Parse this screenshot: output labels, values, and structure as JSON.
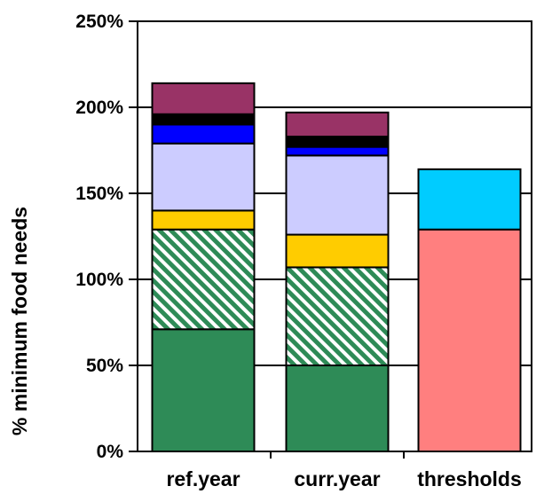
{
  "chart_data": {
    "type": "bar",
    "stacked": true,
    "title": "",
    "xlabel": "",
    "ylabel": "% minimum food needs",
    "ylim": [
      0,
      250
    ],
    "y_ticks": [
      "0%",
      "50%",
      "100%",
      "150%",
      "200%",
      "250%"
    ],
    "y_tick_values": [
      0,
      50,
      100,
      150,
      200,
      250
    ],
    "grid": true,
    "legend": "none",
    "categories": [
      "ref.year",
      "curr.year",
      "thresholds"
    ],
    "series": [
      {
        "color": "#2e8b57",
        "pattern": "solid",
        "values": [
          71,
          50,
          0
        ]
      },
      {
        "color": "#2e8b57",
        "pattern": "diagonal-hatch",
        "values": [
          58,
          57,
          0
        ]
      },
      {
        "color": "#ffcc00",
        "pattern": "solid",
        "values": [
          11,
          19,
          0
        ]
      },
      {
        "color": "#ccccff",
        "pattern": "solid",
        "values": [
          39,
          46,
          0
        ]
      },
      {
        "color": "#0000ff",
        "pattern": "solid",
        "values": [
          11,
          5,
          0
        ]
      },
      {
        "color": "#000000",
        "pattern": "solid",
        "values": [
          6,
          6,
          0
        ]
      },
      {
        "color": "#993366",
        "pattern": "solid",
        "values": [
          18,
          14,
          0
        ]
      },
      {
        "color": "#ff7f7f",
        "pattern": "solid",
        "values": [
          0,
          0,
          129
        ]
      },
      {
        "color": "#00ccff",
        "pattern": "solid",
        "values": [
          0,
          0,
          35
        ]
      }
    ]
  }
}
